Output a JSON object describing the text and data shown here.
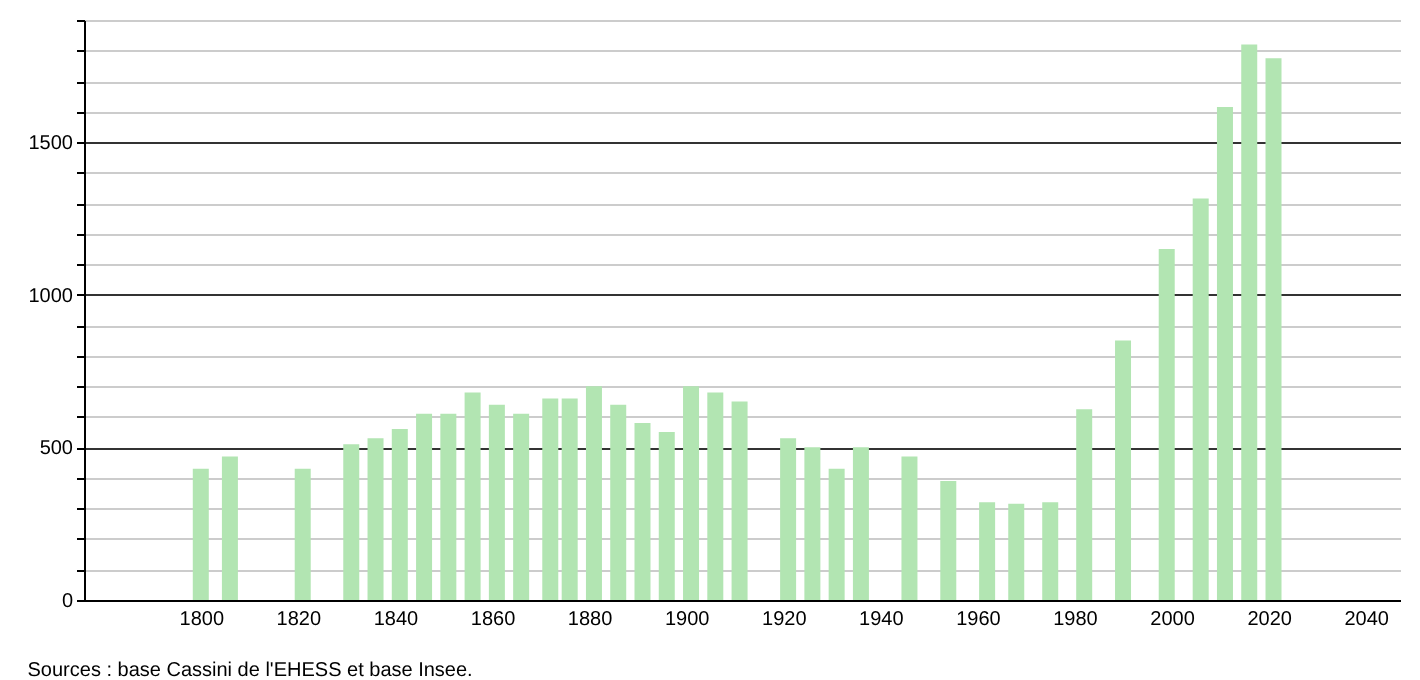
{
  "chart_data": {
    "type": "bar",
    "annotations": [
      "Sources : base Cassini de l'EHESS et base Insee."
    ],
    "x": [
      1800,
      1806,
      1821,
      1831,
      1836,
      1841,
      1846,
      1851,
      1856,
      1861,
      1866,
      1872,
      1876,
      1881,
      1886,
      1891,
      1896,
      1901,
      1906,
      1911,
      1921,
      1926,
      1931,
      1936,
      1946,
      1954,
      1962,
      1968,
      1975,
      1982,
      1990,
      1999,
      2006,
      2011,
      2016,
      2021
    ],
    "values": [
      430,
      470,
      430,
      510,
      530,
      560,
      610,
      610,
      680,
      640,
      610,
      660,
      660,
      700,
      640,
      580,
      550,
      700,
      680,
      650,
      530,
      500,
      430,
      500,
      470,
      390,
      320,
      315,
      320,
      625,
      850,
      1150,
      1315,
      1615,
      1820,
      1775
    ],
    "color": "#b2e5b2",
    "xlim": [
      1778,
      2045
    ],
    "xticks": [
      1800,
      1820,
      1840,
      1860,
      1880,
      1900,
      1920,
      1940,
      1960,
      1980,
      2000,
      2020,
      2040
    ],
    "ylim": [
      0,
      1900
    ],
    "yticks": [
      0,
      {
        "value": 100,
        "label": null
      },
      {
        "value": 200,
        "label": null
      },
      {
        "value": 300,
        "label": null
      },
      {
        "value": 400,
        "label": null
      },
      500,
      {
        "value": 600,
        "label": null
      },
      {
        "value": 700,
        "label": null
      },
      {
        "value": 800,
        "label": null
      },
      {
        "value": 900,
        "label": null
      },
      1000,
      {
        "value": 1100,
        "label": null
      },
      {
        "value": 1200,
        "label": null
      },
      {
        "value": 1300,
        "label": null
      },
      {
        "value": 1400,
        "label": null
      },
      1500,
      {
        "value": 1600,
        "label": null
      },
      {
        "value": 1700,
        "label": null
      },
      {
        "value": 1800,
        "label": null
      },
      {
        "value": 1900,
        "label": null
      }
    ],
    "grid": true
  }
}
